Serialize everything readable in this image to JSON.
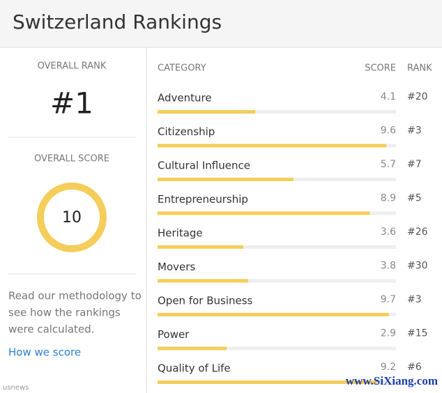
{
  "header": {
    "title": "Switzerland Rankings"
  },
  "sidebar": {
    "rank_label": "OVERALL RANK",
    "rank": "#1",
    "score_label": "OVERALL SCORE",
    "score": 10,
    "methodology": [
      "Read our methodology to",
      "see how the rankings",
      "were calculated."
    ],
    "link": "How we score"
  },
  "table": {
    "columns": [
      "CATEGORY",
      "SCORE",
      "RANK"
    ],
    "xlim": [
      0,
      10
    ],
    "rows": [
      {
        "category": "Adventure",
        "score": 4.1,
        "rank": "#20"
      },
      {
        "category": "Citizenship",
        "score": 9.6,
        "rank": "#3"
      },
      {
        "category": "Cultural Influence",
        "score": 5.7,
        "rank": "#7"
      },
      {
        "category": "Entrepreneurship",
        "score": 8.9,
        "rank": "#5"
      },
      {
        "category": "Heritage",
        "score": 3.6,
        "rank": "#26"
      },
      {
        "category": "Movers",
        "score": 3.8,
        "rank": "#30"
      },
      {
        "category": "Open for Business",
        "score": 9.7,
        "rank": "#3"
      },
      {
        "category": "Power",
        "score": 2.9,
        "rank": "#15"
      },
      {
        "category": "Quality of Life",
        "score": 9.2,
        "rank": "#6"
      }
    ]
  },
  "watermarks": [
    "usnews",
    "www.SiXiang.com"
  ]
}
